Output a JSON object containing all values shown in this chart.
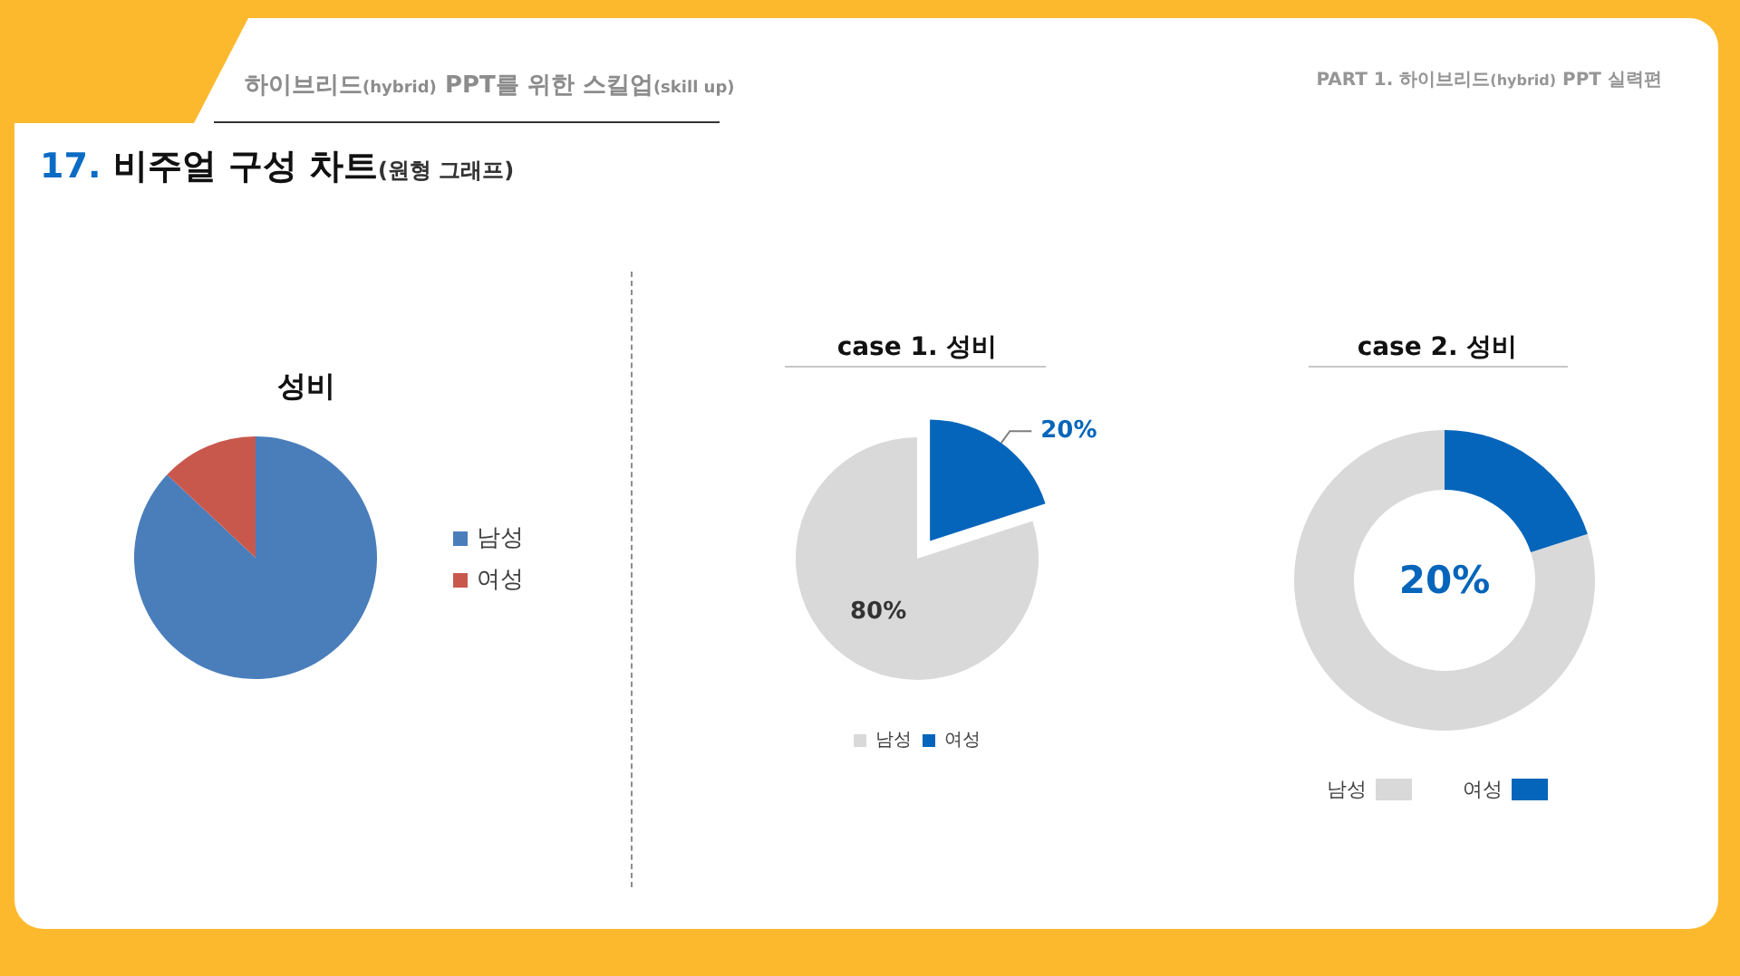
{
  "chart_data": [
    {
      "type": "other",
      "title": "17. 비주얼 구성 차트(원형 그래프)",
      "annotations": [
        "하이브리드(hybrid) PPT를 위한 스킬업(skill up)",
        "PART 1. 하이브리드(hybrid) PPT 실력편"
      ]
    },
    {
      "type": "pie",
      "title": "성비",
      "categories": [
        "남성",
        "여성"
      ],
      "values": [
        87,
        13
      ],
      "colors": [
        "#4a7ebb",
        "#c9584c"
      ],
      "legend": "right"
    },
    {
      "type": "pie",
      "title": "case 1. 성비",
      "categories": [
        "남성",
        "여성"
      ],
      "values": [
        80,
        20
      ],
      "colors": [
        "#d9d9d9",
        "#0565bb"
      ],
      "value_labels": [
        "80%",
        "20%"
      ],
      "legend": "bottom"
    },
    {
      "type": "donut",
      "title": "case 2. 성비",
      "categories": [
        "남성",
        "여성"
      ],
      "values": [
        80,
        20
      ],
      "colors": [
        "#d9d9d9",
        "#0565bb"
      ],
      "value_labels": [
        null,
        "20%"
      ],
      "legend": "bottom"
    }
  ]
}
